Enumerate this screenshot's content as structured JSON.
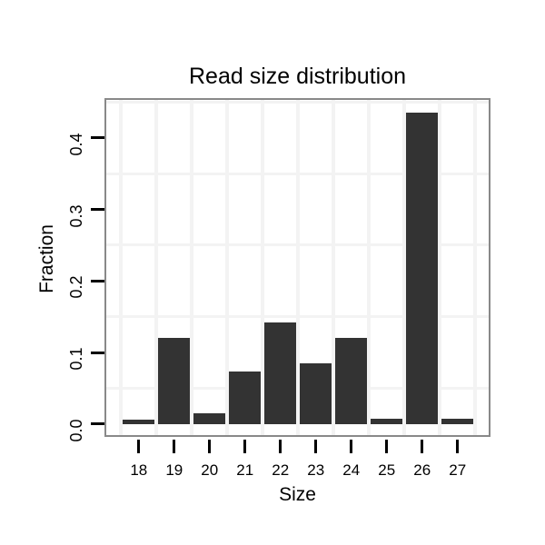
{
  "chart_data": {
    "type": "bar",
    "title": "Read size distribution",
    "xlabel": "Size",
    "ylabel": "Fraction",
    "categories": [
      "18",
      "19",
      "20",
      "21",
      "22",
      "23",
      "24",
      "25",
      "26",
      "27"
    ],
    "values": [
      0.006,
      0.12,
      0.015,
      0.073,
      0.142,
      0.085,
      0.12,
      0.007,
      0.436,
      0.007
    ],
    "yticks": [
      0.0,
      0.1,
      0.2,
      0.3,
      0.4
    ],
    "ytick_labels": [
      "0.0",
      "0.1",
      "0.2",
      "0.3",
      "0.4"
    ],
    "minor_grid_y": [
      0.05,
      0.15,
      0.25,
      0.35,
      0.45
    ],
    "ylim": [
      -0.019,
      0.456
    ],
    "grid": "minor-gridlines-only",
    "legend": "none",
    "colors": {
      "bar": "#333333",
      "panel_border": "#898989",
      "grid": "#f3f3f3",
      "tick": "#000000",
      "text": "#000000",
      "background": "#ffffff"
    }
  }
}
